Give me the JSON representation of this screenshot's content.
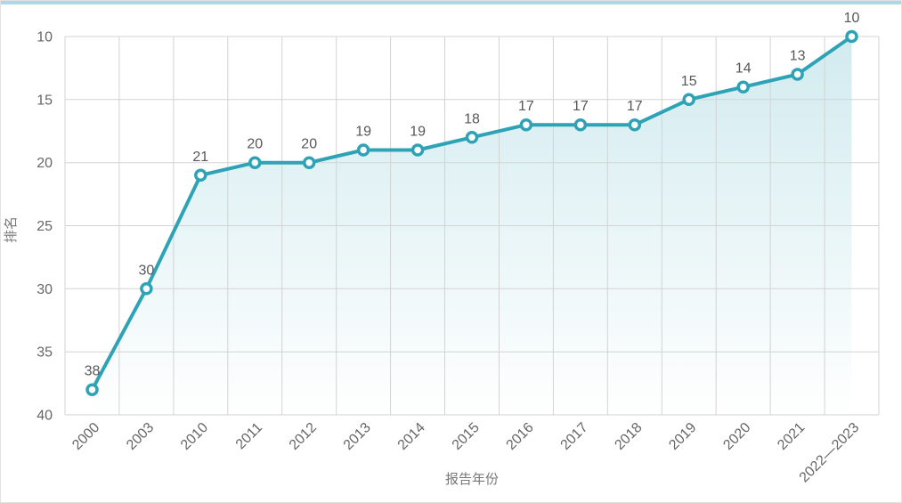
{
  "card": {
    "accent_color": "#a9dbe6"
  },
  "chart_data": {
    "type": "line",
    "title": "",
    "xlabel": "报告年份",
    "ylabel": "排名",
    "categories": [
      "2000",
      "2003",
      "2010",
      "2011",
      "2012",
      "2013",
      "2014",
      "2015",
      "2016",
      "2017",
      "2018",
      "2019",
      "2020",
      "2021",
      "2022—2023"
    ],
    "values": [
      38,
      30,
      21,
      20,
      20,
      19,
      19,
      18,
      17,
      17,
      17,
      15,
      14,
      13,
      10
    ],
    "data_labels": [
      "38",
      "30",
      "21",
      "20",
      "20",
      "19",
      "19",
      "18",
      "17",
      "17",
      "17",
      "15",
      "14",
      "13",
      "10"
    ],
    "y_axis": {
      "min": 10,
      "max": 40,
      "step": 5,
      "inverted": true,
      "ticks": [
        "10",
        "15",
        "20",
        "25",
        "30",
        "35",
        "40"
      ]
    },
    "x_tick_rotation_deg": -45,
    "grid": true,
    "legend": "none",
    "area_fill": true,
    "markers": "hollow-circle",
    "colors": {
      "line": "#2fa3b6",
      "marker_fill": "#ffffff",
      "area_top": "rgba(47,163,182,0.22)",
      "area_bottom": "rgba(47,163,182,0)",
      "grid_line": "#d3d3d3",
      "tick_text": "#666666",
      "data_label": "#575757",
      "axis_title": "#777777"
    }
  }
}
